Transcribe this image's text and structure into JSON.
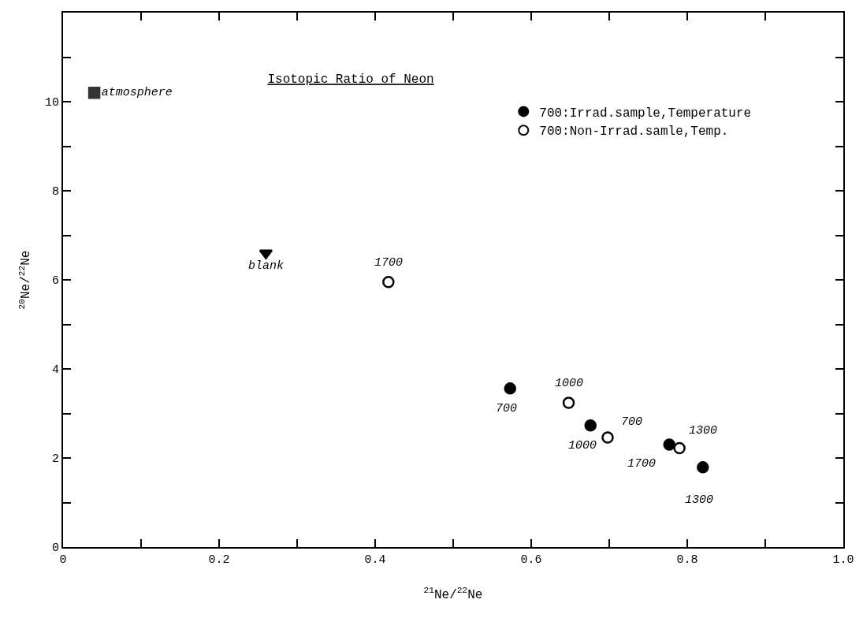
{
  "chart_data": {
    "type": "scatter",
    "title": "Isotopic Ratio of Neon",
    "xlabel": "$^{21}$Ne/$^{22}$Ne",
    "ylabel": "$^{20}$Ne/$^{22}$Ne",
    "xlim": [
      0,
      1
    ],
    "ylim": [
      0,
      12
    ],
    "xticks": [
      0,
      {
        "value": 0.1,
        "label": null
      },
      0.2,
      {
        "value": 0.3,
        "label": null
      },
      0.4,
      {
        "value": 0.5,
        "label": null
      },
      0.6,
      {
        "value": 0.7,
        "label": null
      },
      0.8,
      {
        "value": 0.9,
        "label": null
      },
      {
        "value": 1,
        "label": "1.0"
      }
    ],
    "yticks": [
      0,
      {
        "value": 1,
        "label": null
      },
      2,
      {
        "value": 3,
        "label": null
      },
      4,
      {
        "value": 5,
        "label": null
      },
      6,
      {
        "value": 7,
        "label": null
      },
      8,
      {
        "value": 9,
        "label": null
      },
      10,
      {
        "value": 11,
        "label": null
      },
      {
        "value": 12,
        "label": null
      }
    ],
    "legend": "top right",
    "series": [
      {
        "name": "700:Irrad.sample,Temperature",
        "color": "#000000",
        "marker": "circle",
        "x": [
          0.573,
          0.676,
          0.777,
          0.82
        ],
        "values": [
          3.56,
          2.73,
          2.3,
          1.79
        ]
      },
      {
        "name": "700:Non-Irrad.samle,Temp.",
        "color": "#000000",
        "marker": "circle",
        "x": [
          0.417,
          0.648,
          0.698,
          0.79
        ],
        "values": [
          5.95,
          3.24,
          2.46,
          2.22
        ]
      },
      {
        "name": "atmosphere",
        "color": "#333333",
        "marker": "square",
        "x": [
          0.04
        ],
        "values": [
          10.2
        ]
      },
      {
        "name": "blank",
        "color": "#000000",
        "marker": "triangle",
        "x": [
          0.26
        ],
        "values": [
          6.6
        ]
      }
    ],
    "annotations": [
      {
        "text": "700",
        "x": 0.573,
        "y": 3.56
      },
      {
        "text": "1000",
        "x": 0.676,
        "y": 2.73
      },
      {
        "text": "1700",
        "x": 0.777,
        "y": 2.3
      },
      {
        "text": "1300",
        "x": 0.82,
        "y": 1.79
      },
      {
        "text": "1700",
        "x": 0.417,
        "y": 5.95
      },
      {
        "text": "1000",
        "x": 0.648,
        "y": 3.24
      },
      {
        "text": "700",
        "x": 0.698,
        "y": 2.46
      },
      {
        "text": "1300",
        "x": 0.79,
        "y": 2.22
      }
    ]
  }
}
